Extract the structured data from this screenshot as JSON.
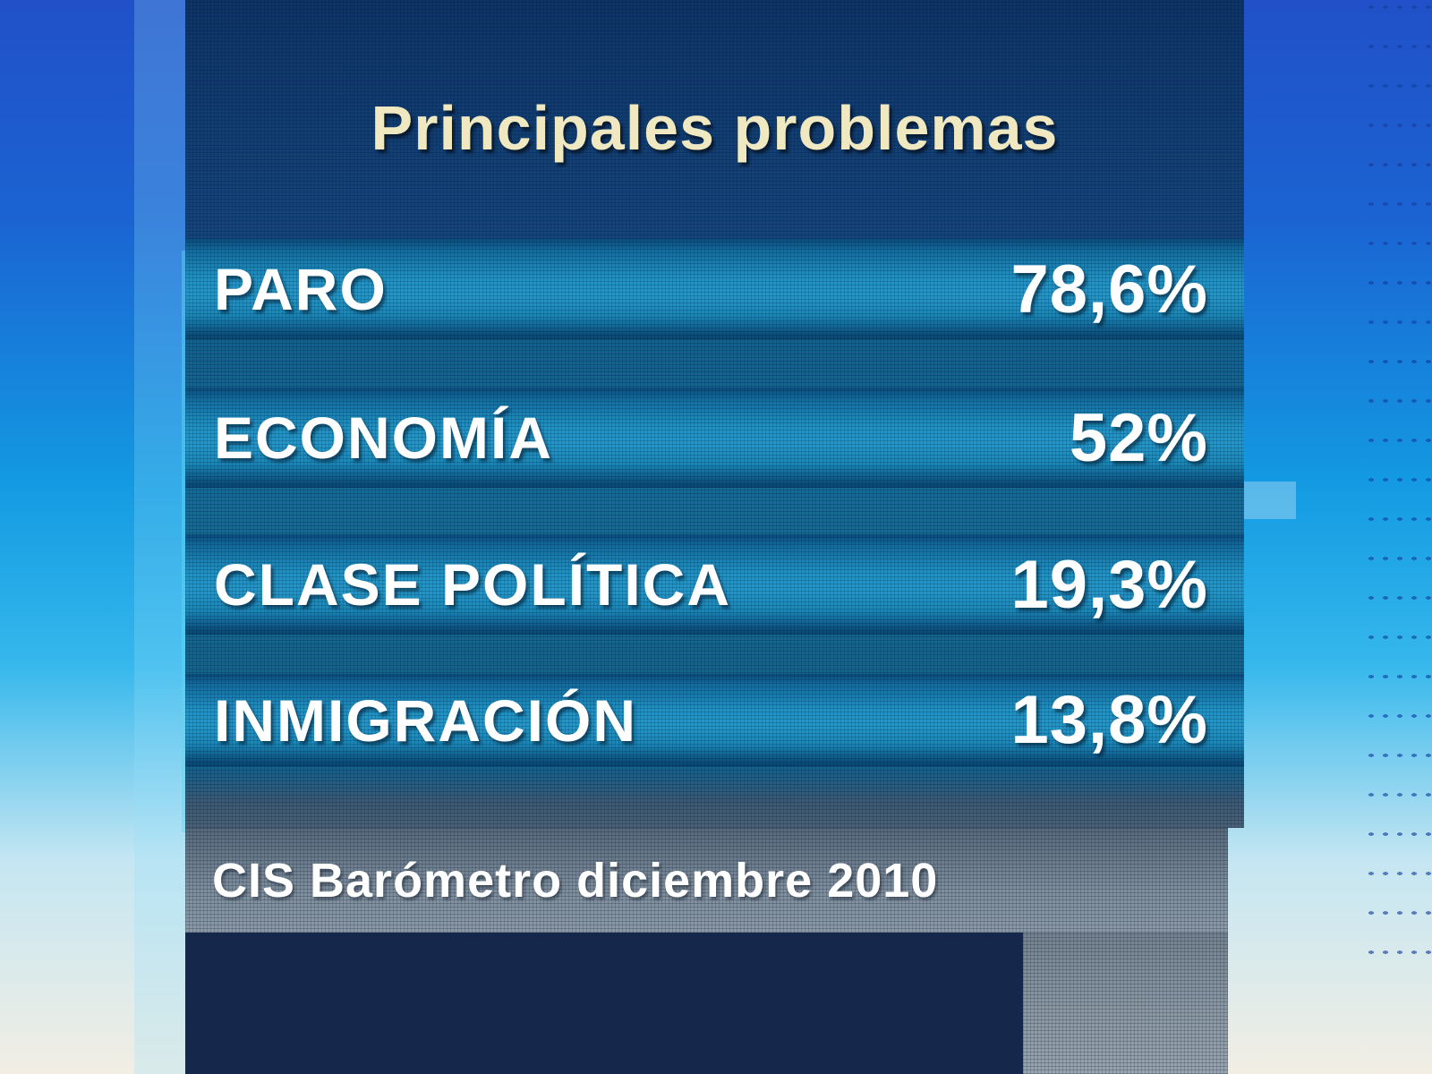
{
  "chart": {
    "title": "Principales problemas",
    "rows": [
      {
        "label": "PARO",
        "value": "78,6%"
      },
      {
        "label": "ECONOMÍA",
        "value": "52%"
      },
      {
        "label": "CLASE POLÍTICA",
        "value": "19,3%"
      },
      {
        "label": "INMIGRACIÓN",
        "value": "13,8%"
      }
    ],
    "source": "CIS Barómetro diciembre 2010"
  },
  "chart_data": {
    "type": "table",
    "title": "Principales problemas",
    "categories": [
      "PARO",
      "ECONOMÍA",
      "CLASE POLÍTICA",
      "INMIGRACIÓN"
    ],
    "values": [
      78.6,
      52,
      19.3,
      13.8
    ],
    "value_labels": [
      "78,6%",
      "52%",
      "19,3%",
      "13,8%"
    ],
    "unit": "%",
    "source": "CIS Barómetro diciembre 2010",
    "legend": false,
    "grid": false
  },
  "colors": {
    "title_text": "#efe8c0",
    "row_text": "#ffffff",
    "header_navy": "#123e72",
    "row_teal": "#2392c2",
    "source_band_gray": "#7f8e9d",
    "footer_navy": "#15284b",
    "background_blue_top": "#2150c8",
    "background_cyan": "#36b8ec"
  }
}
